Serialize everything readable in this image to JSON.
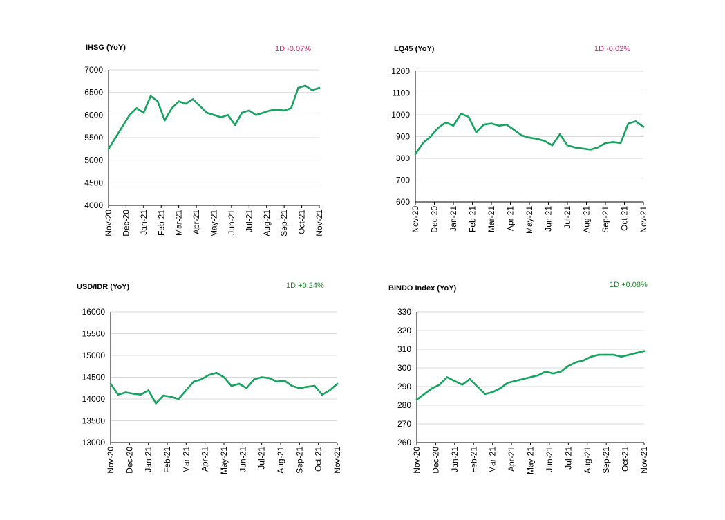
{
  "colors": {
    "line": "#16a35f",
    "negative": "#e0197a",
    "positive": "#1a8a2a",
    "grid": "#d9d9d9",
    "axis": "#000000"
  },
  "chart_data": [
    {
      "type": "line",
      "title": "IHSG (YoY)",
      "change": "1D -0.07%",
      "change_sign": "negative",
      "ylim": [
        4000,
        7000
      ],
      "yticks": [
        "4000",
        "4500",
        "5000",
        "5500",
        "6000",
        "6500",
        "7000"
      ],
      "xlabels": [
        "Nov-20",
        "Dec-20",
        "Jan-21",
        "Feb-21",
        "Mar-21",
        "Apr-21",
        "May-21",
        "Jun-21",
        "Jul-21",
        "Aug-21",
        "Sep-21",
        "Oct-21",
        "Nov-21"
      ],
      "grid": true,
      "series": [
        {
          "values": [
            5250,
            5500,
            5750,
            6000,
            6150,
            6050,
            6420,
            6300,
            5880,
            6150,
            6300,
            6250,
            6350,
            6200,
            6050,
            6000,
            5950,
            6000,
            5780,
            6050,
            6100,
            6000,
            6050,
            6100,
            6120,
            6100,
            6150,
            6600,
            6650,
            6550,
            6600
          ]
        }
      ]
    },
    {
      "type": "line",
      "title": "LQ45 (YoY)",
      "change": "1D -0.02%",
      "change_sign": "negative",
      "ylim": [
        600,
        1200
      ],
      "yticks": [
        "600",
        "700",
        "800",
        "900",
        "1000",
        "1100",
        "1200"
      ],
      "xlabels": [
        "Nov-20",
        "Dec-20",
        "Jan-21",
        "Feb-21",
        "Mar-21",
        "Apr-21",
        "May-21",
        "Jun-21",
        "Jul-21",
        "Aug-21",
        "Sep-21",
        "Oct-21",
        "Nov-21"
      ],
      "grid": true,
      "series": [
        {
          "values": [
            820,
            870,
            900,
            940,
            965,
            950,
            1005,
            990,
            920,
            955,
            960,
            950,
            955,
            930,
            905,
            895,
            890,
            880,
            860,
            910,
            860,
            850,
            845,
            840,
            850,
            870,
            875,
            870,
            960,
            970,
            945
          ]
        }
      ]
    },
    {
      "type": "line",
      "title": "USD/IDR  (YoY)",
      "change": "1D +0.24%",
      "change_sign": "positive",
      "ylim": [
        13000,
        16000
      ],
      "yticks": [
        "13000",
        "13500",
        "14000",
        "14500",
        "15000",
        "15500",
        "16000"
      ],
      "xlabels": [
        "Nov-20",
        "Dec-20",
        "Jan-21",
        "Feb-21",
        "Mar-21",
        "Apr-21",
        "May-21",
        "Jun-21",
        "Jul-21",
        "Aug-21",
        "Sep-21",
        "Oct-21",
        "Nov-21"
      ],
      "grid": true,
      "series": [
        {
          "values": [
            14350,
            14100,
            14150,
            14120,
            14100,
            14200,
            13900,
            14080,
            14050,
            14000,
            14200,
            14400,
            14450,
            14550,
            14600,
            14500,
            14300,
            14350,
            14250,
            14450,
            14500,
            14480,
            14400,
            14420,
            14300,
            14250,
            14280,
            14300,
            14100,
            14200,
            14350
          ]
        }
      ]
    },
    {
      "type": "line",
      "title": "BINDO Index (YoY)",
      "change": "1D +0.08%",
      "change_sign": "positive",
      "ylim": [
        260,
        330
      ],
      "yticks": [
        "260",
        "270",
        "280",
        "290",
        "300",
        "310",
        "320",
        "330"
      ],
      "xlabels": [
        "Nov-20",
        "Dec-20",
        "Jan-21",
        "Feb-21",
        "Mar-21",
        "Apr-21",
        "May-21",
        "Jun-21",
        "Jul-21",
        "Aug-21",
        "Sep-21",
        "Oct-21",
        "Nov-21"
      ],
      "grid": true,
      "series": [
        {
          "values": [
            283,
            286,
            289,
            291,
            295,
            293,
            291,
            294,
            290,
            286,
            287,
            289,
            292,
            293,
            294,
            295,
            296,
            298,
            297,
            298,
            301,
            303,
            304,
            306,
            307,
            307,
            307,
            306,
            307,
            308,
            309
          ]
        }
      ]
    }
  ]
}
